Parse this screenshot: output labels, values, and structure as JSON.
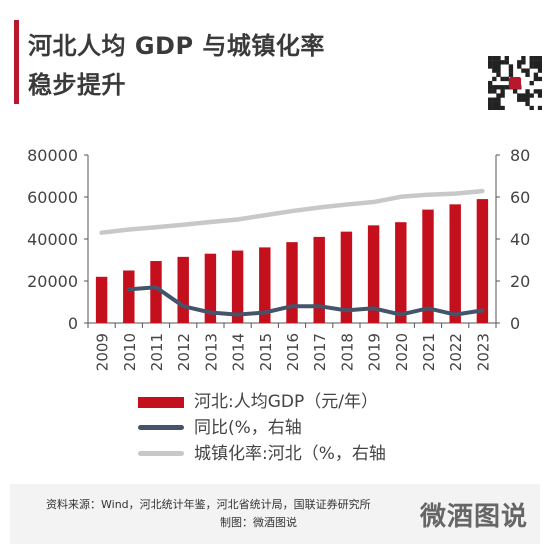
{
  "colors": {
    "accent": "#b8182b",
    "bar": "#c40f1c",
    "yoy_line": "#44546a",
    "urban_line": "#c8c8c8",
    "axis": "#555555"
  },
  "header": {
    "title_line1": "河北人均 GDP 与城镇化率",
    "title_line2": "稳步提升",
    "qr_icon": "qr-code-icon"
  },
  "chart_data": {
    "type": "bar",
    "categories": [
      "2009",
      "2010",
      "2011",
      "2012",
      "2013",
      "2014",
      "2015",
      "2016",
      "2017",
      "2018",
      "2019",
      "2020",
      "2021",
      "2022",
      "2023"
    ],
    "series": [
      {
        "name": "河北:人均GDP（元/年）",
        "type": "bar",
        "axis": "left",
        "values": [
          22000,
          25000,
          29500,
          31500,
          33000,
          34500,
          36000,
          38500,
          41000,
          43500,
          46500,
          48000,
          54000,
          56500,
          59000
        ]
      },
      {
        "name": "同比(%，右轴",
        "type": "line",
        "axis": "right",
        "values": [
          16,
          16,
          17,
          8,
          5,
          4,
          5,
          8,
          8,
          6,
          7,
          4,
          7,
          4,
          6
        ]
      },
      {
        "name": "城镇化率:河北（%，右轴",
        "type": "line",
        "axis": "right",
        "values": [
          43,
          44.5,
          45.6,
          46.8,
          48.1,
          49.3,
          51.3,
          53.3,
          55,
          56.4,
          57.6,
          60.1,
          61.1,
          61.6,
          62.8
        ]
      }
    ],
    "y_left": {
      "ylim": [
        0,
        80000
      ],
      "ticks": [
        "0",
        "20000",
        "40000",
        "60000",
        "80000"
      ]
    },
    "y_right": {
      "ylim": [
        0,
        80
      ],
      "ticks": [
        "0",
        "20",
        "40",
        "60",
        "80"
      ]
    },
    "grid": false,
    "legend_position": "bottom"
  },
  "legend": [
    {
      "label": "河北:人均GDP（元/年）",
      "kind": "bar"
    },
    {
      "label": "同比(%，右轴",
      "kind": "line-dark"
    },
    {
      "label": "城镇化率:河北（%，右轴",
      "kind": "line-gray"
    }
  ],
  "footer": {
    "source": "资料来源：Wind，河北统计年鉴，河北省统计局，国联证券研究所",
    "maker": "制图：微酒图说",
    "brand": "微酒图说"
  }
}
